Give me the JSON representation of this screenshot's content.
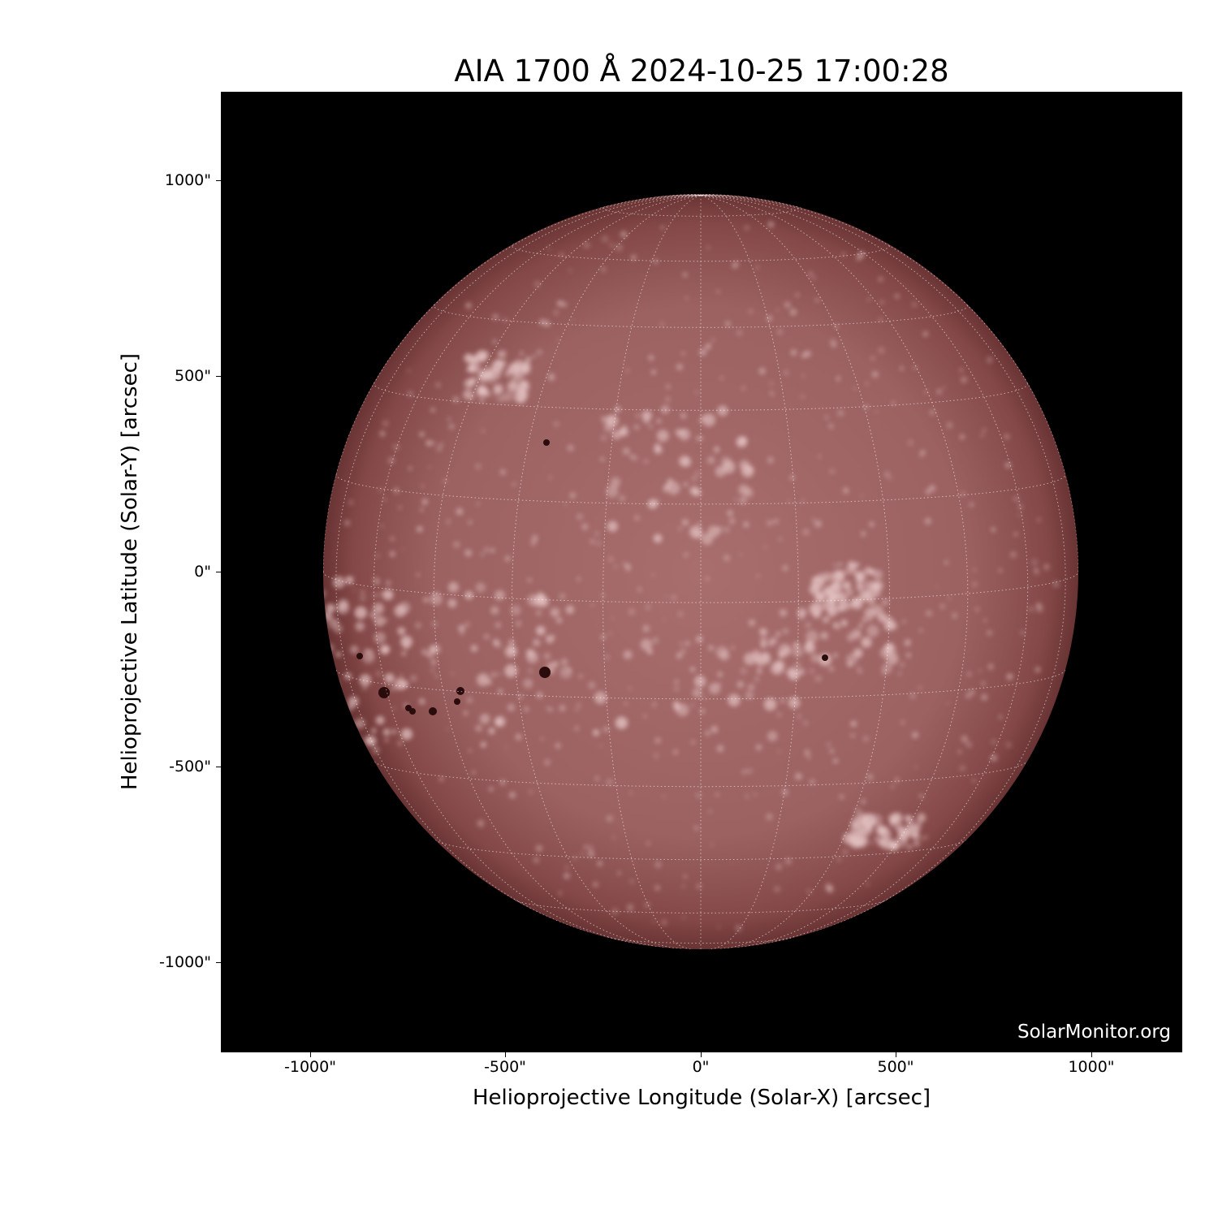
{
  "title": "AIA 1700 Å 2024-10-25 17:00:28",
  "watermark": "SolarMonitor.org",
  "xaxis": {
    "label": "Helioprojective Longitude (Solar-X) [arcsec]",
    "ticks": [
      "-1000\"",
      "-500\"",
      "0\"",
      "500\"",
      "1000\""
    ]
  },
  "yaxis": {
    "label": "Helioprojective Latitude (Solar-Y) [arcsec]",
    "ticks": [
      "1000\"",
      "500\"",
      "0\"",
      "-500\"",
      "-1000\""
    ]
  },
  "colors": {
    "background": "#000000",
    "disk_center": "#a86e6e",
    "disk_limb": "#6a3434",
    "plage": "#e8c8c8",
    "sunspot": "#2a0c0c",
    "grid": "#ffffff"
  },
  "image": {
    "instrument": "AIA",
    "wavelength": "1700 Å",
    "colormap": "sdoaia1700",
    "grid_spacing_deg": 15
  }
}
